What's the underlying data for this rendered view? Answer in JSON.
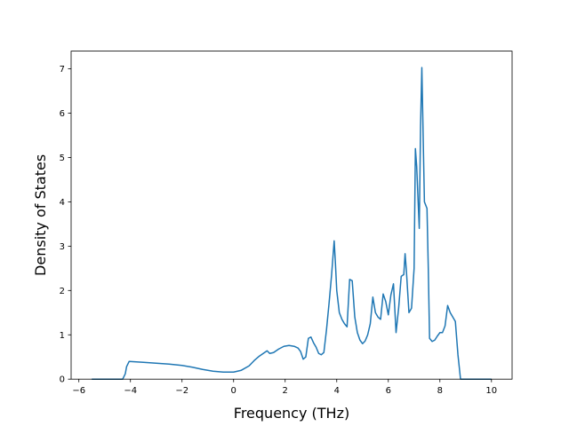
{
  "chart_data": {
    "type": "line",
    "title": "",
    "xlabel": "Frequency (THz)",
    "ylabel": "Density of States",
    "xlim": [
      -6.3,
      10.8
    ],
    "ylim": [
      0,
      7.4
    ],
    "xticks": [
      -6,
      -4,
      -2,
      0,
      2,
      4,
      6,
      8,
      10
    ],
    "xtick_labels": [
      "−6",
      "−4",
      "−2",
      "0",
      "2",
      "4",
      "6",
      "8",
      "10"
    ],
    "yticks": [
      0,
      1,
      2,
      3,
      4,
      5,
      6,
      7
    ],
    "ytick_labels": [
      "0",
      "1",
      "2",
      "3",
      "4",
      "5",
      "6",
      "7"
    ],
    "grid": false,
    "legend": "none",
    "series": [
      {
        "color": "#1f77b4",
        "x": [
          -5.5,
          -4.3,
          -4.2,
          -4.15,
          -4.05,
          -3.5,
          -3.0,
          -2.5,
          -2.0,
          -1.6,
          -1.2,
          -0.8,
          -0.4,
          0.0,
          0.3,
          0.6,
          0.8,
          1.0,
          1.15,
          1.3,
          1.4,
          1.55,
          1.75,
          1.95,
          2.15,
          2.35,
          2.5,
          2.6,
          2.7,
          2.8,
          2.9,
          3.0,
          3.1,
          3.2,
          3.3,
          3.4,
          3.5,
          3.6,
          3.7,
          3.8,
          3.9,
          3.95,
          4.0,
          4.1,
          4.2,
          4.3,
          4.4,
          4.5,
          4.6,
          4.7,
          4.8,
          4.9,
          5.0,
          5.1,
          5.2,
          5.3,
          5.4,
          5.5,
          5.6,
          5.7,
          5.8,
          5.9,
          6.0,
          6.1,
          6.2,
          6.3,
          6.4,
          6.5,
          6.6,
          6.65,
          6.7,
          6.8,
          6.9,
          7.0,
          7.05,
          7.1,
          7.2,
          7.25,
          7.3,
          7.35,
          7.4,
          7.5,
          7.55,
          7.6,
          7.7,
          7.8,
          7.9,
          8.0,
          8.1,
          8.2,
          8.3,
          8.4,
          8.5,
          8.6,
          8.7,
          8.8,
          10.0
        ],
        "y": [
          0.0,
          0.0,
          0.12,
          0.28,
          0.4,
          0.38,
          0.36,
          0.34,
          0.31,
          0.27,
          0.22,
          0.18,
          0.16,
          0.16,
          0.2,
          0.3,
          0.42,
          0.52,
          0.58,
          0.64,
          0.58,
          0.6,
          0.68,
          0.74,
          0.76,
          0.74,
          0.7,
          0.62,
          0.45,
          0.5,
          0.92,
          0.95,
          0.82,
          0.72,
          0.58,
          0.55,
          0.6,
          1.1,
          1.7,
          2.35,
          3.12,
          2.6,
          2.0,
          1.5,
          1.35,
          1.25,
          1.18,
          2.25,
          2.22,
          1.4,
          1.05,
          0.88,
          0.8,
          0.86,
          1.0,
          1.25,
          1.85,
          1.5,
          1.4,
          1.35,
          1.92,
          1.75,
          1.45,
          1.9,
          2.15,
          1.05,
          1.6,
          2.32,
          2.36,
          2.83,
          2.45,
          1.5,
          1.6,
          2.5,
          5.2,
          4.8,
          3.4,
          5.7,
          7.03,
          5.5,
          4.0,
          3.85,
          2.5,
          0.92,
          0.85,
          0.88,
          0.97,
          1.05,
          1.05,
          1.2,
          1.66,
          1.5,
          1.4,
          1.3,
          0.55,
          0.0,
          0.0
        ]
      }
    ]
  }
}
